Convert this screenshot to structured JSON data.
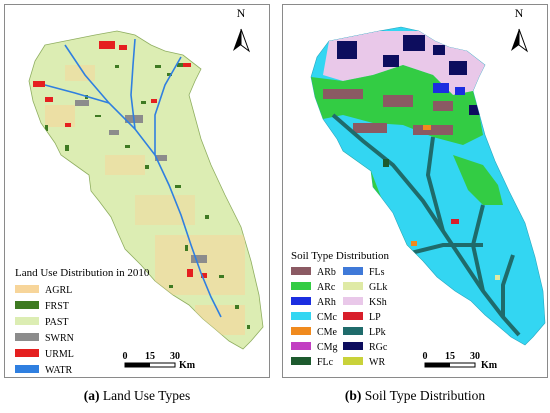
{
  "panels": [
    {
      "id": "a",
      "caption_label": "(a)",
      "caption_text": "Land Use Types",
      "north_label": "N",
      "legend_title": "Land Use Distribution in 2010",
      "legend": [
        {
          "code": "AGRL",
          "color": "#f7d59a"
        },
        {
          "code": "FRST",
          "color": "#3e7a22"
        },
        {
          "code": "PAST",
          "color": "#dcedb3"
        },
        {
          "code": "SWRN",
          "color": "#8c8c8c"
        },
        {
          "code": "URML",
          "color": "#e51f1f"
        },
        {
          "code": "WATR",
          "color": "#2f7fe0"
        }
      ],
      "scale": {
        "ticks": [
          "0",
          "15",
          "30"
        ],
        "unit": "Km"
      }
    },
    {
      "id": "b",
      "caption_label": "(b)",
      "caption_text": "Soil Type Distribution",
      "north_label": "N",
      "legend_title": "Soil Type Distribution",
      "legend": [
        {
          "code": "ARb",
          "color": "#8b5a63"
        },
        {
          "code": "FLs",
          "color": "#3f79d8"
        },
        {
          "code": "ARc",
          "color": "#33cc44"
        },
        {
          "code": "GLk",
          "color": "#dfeaa5"
        },
        {
          "code": "ARh",
          "color": "#1b2ee0"
        },
        {
          "code": "KSh",
          "color": "#e9c8e9"
        },
        {
          "code": "CMc",
          "color": "#33d6f2"
        },
        {
          "code": "LP",
          "color": "#d81e2a"
        },
        {
          "code": "CMe",
          "color": "#f08a1e"
        },
        {
          "code": "LPk",
          "color": "#1f6b6b"
        },
        {
          "code": "CMg",
          "color": "#c23ec2"
        },
        {
          "code": "RGc",
          "color": "#0d0d5e"
        },
        {
          "code": "FLc",
          "color": "#1d5a2e"
        },
        {
          "code": "WR",
          "color": "#c9d23a"
        }
      ],
      "scale": {
        "ticks": [
          "0",
          "15",
          "30"
        ],
        "unit": "Km"
      }
    }
  ]
}
